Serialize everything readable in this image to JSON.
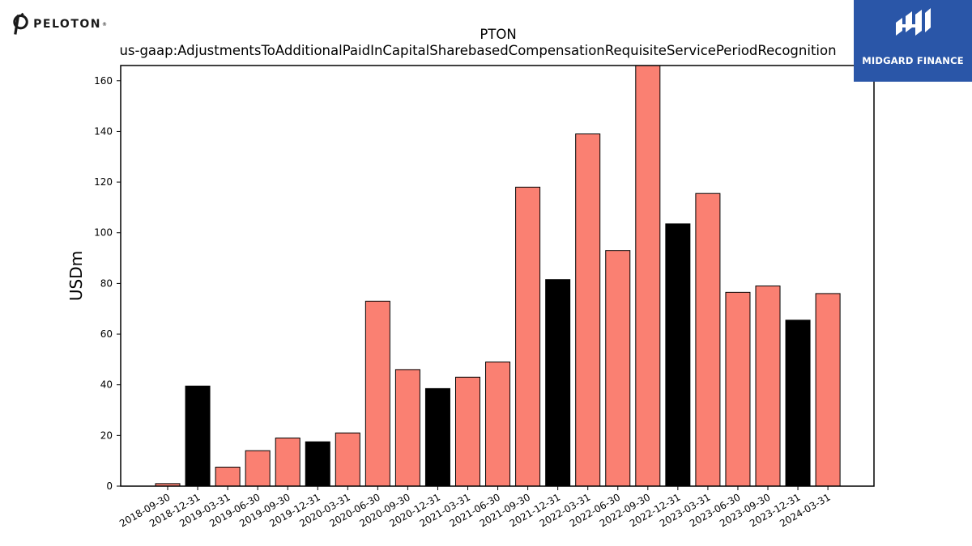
{
  "branding": {
    "left_logo_text": "PELOTON",
    "left_logo_mark": "®",
    "right_logo_text": "MIDGARD FINANCE",
    "right_logo_bg": "#2a56a8"
  },
  "chart_data": {
    "type": "bar",
    "title": "PTON",
    "subtitle": "us-gaap:AdjustmentsToAdditionalPaidInCapitalSharebasedCompensationRequisiteServicePeriodRecognition",
    "xlabel": "",
    "ylabel": "USDm",
    "ylim": [
      0,
      166
    ],
    "yticks": [
      0,
      20,
      40,
      60,
      80,
      100,
      120,
      140,
      160
    ],
    "grid": false,
    "categories": [
      "2018-09-30",
      "2018-12-31",
      "2019-03-31",
      "2019-06-30",
      "2019-09-30",
      "2019-12-31",
      "2020-03-31",
      "2020-06-30",
      "2020-09-30",
      "2020-12-31",
      "2021-03-31",
      "2021-06-30",
      "2021-09-30",
      "2021-12-31",
      "2022-03-31",
      "2022-06-30",
      "2022-09-30",
      "2022-12-31",
      "2023-03-31",
      "2023-06-30",
      "2023-09-30",
      "2023-12-31",
      "2024-03-31"
    ],
    "values": [
      1,
      39.5,
      7.5,
      14,
      19,
      17.5,
      21,
      73,
      46,
      38.5,
      43,
      49,
      118,
      81.5,
      139,
      93,
      167,
      103.5,
      115.5,
      76.5,
      79,
      65.5,
      76
    ],
    "bar_colors": [
      "#fa8072",
      "#000000",
      "#fa8072",
      "#fa8072",
      "#fa8072",
      "#000000",
      "#fa8072",
      "#fa8072",
      "#fa8072",
      "#000000",
      "#fa8072",
      "#fa8072",
      "#fa8072",
      "#000000",
      "#fa8072",
      "#fa8072",
      "#fa8072",
      "#000000",
      "#fa8072",
      "#fa8072",
      "#fa8072",
      "#000000",
      "#fa8072"
    ]
  }
}
